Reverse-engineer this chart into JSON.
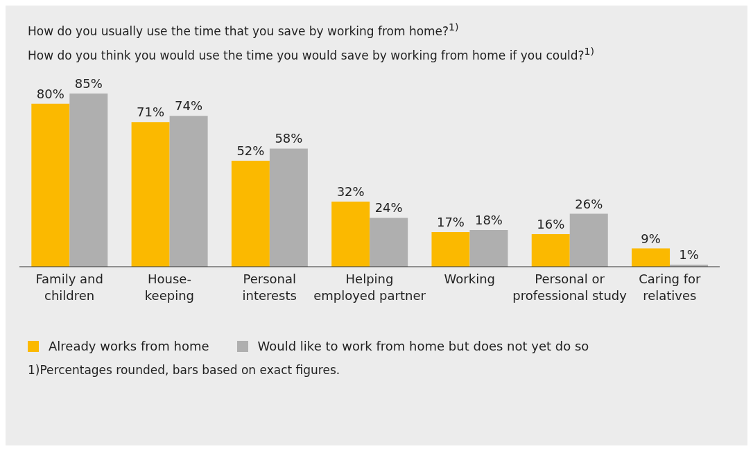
{
  "chart_data": {
    "type": "bar",
    "title": "How do you usually use the time that you save by working from home?$^{1)}$",
    "subtitle": "How do you think you would use the time you would save by working from home if you could?$^{1)}$",
    "categories": [
      "Family and\nchildren",
      "House-\nkeeping",
      "Personal\ninterests",
      "Helping\nemployed partner",
      "Working",
      "Personal or\nprofessional study",
      "Caring for\nrelatives"
    ],
    "series": [
      {
        "name": "Already works from home",
        "color": "#fbb900",
        "values": [
          80,
          71,
          52,
          32,
          17,
          16,
          9
        ],
        "value_labels": [
          "80%",
          "71%",
          "52%",
          "32%",
          "17%",
          "16%",
          "9%"
        ]
      },
      {
        "name": "Would like to work from home but does not yet do so",
        "color": "#afafaf",
        "values": [
          85,
          74,
          58,
          24,
          18,
          26,
          1
        ],
        "value_labels": [
          "85%",
          "74%",
          "58%",
          "24%",
          "18%",
          "26%",
          "1%"
        ]
      }
    ],
    "legend": "bottom left",
    "annotations": [
      "1)Percentages rounded, bars based on exact figures."
    ]
  }
}
